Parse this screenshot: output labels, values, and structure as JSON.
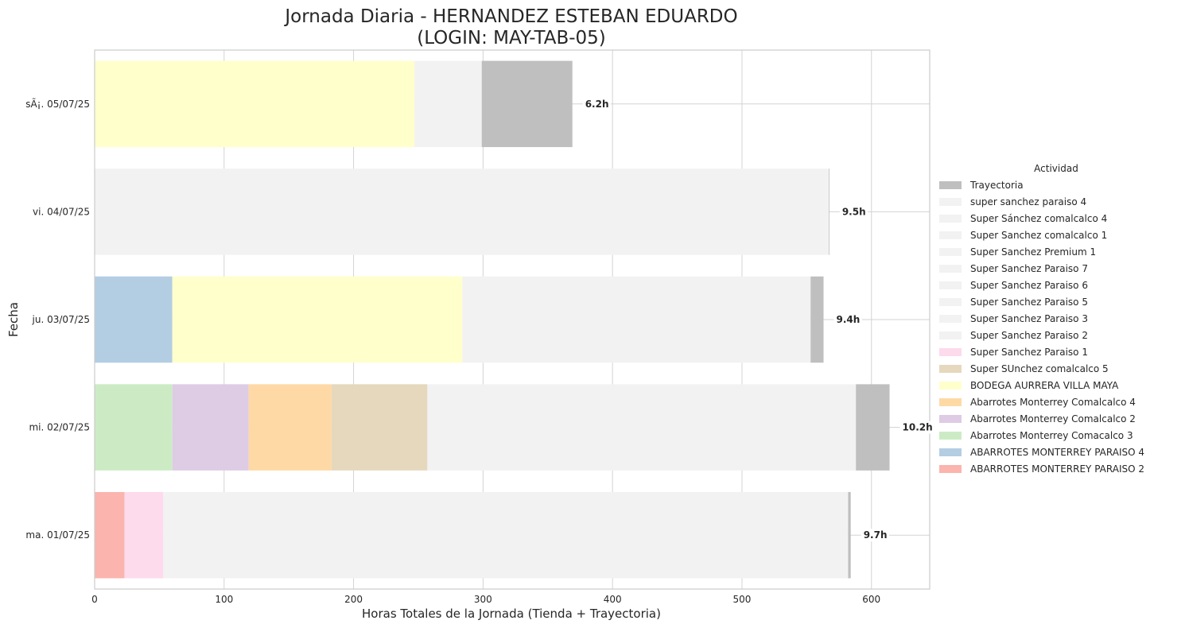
{
  "chart_data": {
    "type": "bar",
    "orientation": "horizontal",
    "stacked": true,
    "title_line1": "Jornada Diaria - HERNANDEZ ESTEBAN EDUARDO",
    "title_line2": "(LOGIN: MAY-TAB-05)",
    "xlabel": "Horas Totales de la Jornada (Tienda + Trayectoria)",
    "ylabel": "Fecha",
    "xlim": [
      0,
      645
    ],
    "xticks": [
      0,
      100,
      200,
      300,
      400,
      500,
      600
    ],
    "grid": true,
    "legend_title": "Actividad",
    "legend_placement": "right",
    "categories": [
      "ma. 01/07/25",
      "mi. 02/07/25",
      "ju. 03/07/25",
      "vi. 04/07/25",
      "sÃ¡. 05/07/25"
    ],
    "totals_labels": [
      "9.7h",
      "10.2h",
      "9.4h",
      "9.5h",
      "6.2h"
    ],
    "series": [
      {
        "name": "Trayectoria",
        "color": "#bfbfbf"
      },
      {
        "name": "super sanchez paraiso 4",
        "color": "#f2f2f2"
      },
      {
        "name": "Super Sánchez comalcalco 4",
        "color": "#f2f2f2"
      },
      {
        "name": "Super Sanchez comalcalco 1",
        "color": "#f2f2f2"
      },
      {
        "name": "Super Sanchez Premium 1",
        "color": "#f2f2f2"
      },
      {
        "name": "Super Sanchez Paraiso 7",
        "color": "#f2f2f2"
      },
      {
        "name": "Super Sanchez Paraiso 6",
        "color": "#f2f2f2"
      },
      {
        "name": "Super Sanchez Paraiso 5",
        "color": "#f2f2f2"
      },
      {
        "name": "Super Sanchez Paraiso 3",
        "color": "#f2f2f2"
      },
      {
        "name": "Super Sanchez Paraiso 2",
        "color": "#f2f2f2"
      },
      {
        "name": "Super Sanchez Paraiso 1",
        "color": "#fddaec"
      },
      {
        "name": "Super SUnchez comalcalco 5",
        "color": "#e5d8bd"
      },
      {
        "name": "BODEGA AURRERA VILLA MAYA",
        "color": "#ffffcc"
      },
      {
        "name": "Abarrotes Monterrey Comalcalco 4",
        "color": "#fed9a6"
      },
      {
        "name": "Abarrotes Monterrey Comalcalco 2",
        "color": "#decbe4"
      },
      {
        "name": "Abarrotes Monterrey Comacalco 3",
        "color": "#ccebc5"
      },
      {
        "name": "ABARROTES MONTERREY PARAISO 4",
        "color": "#b3cde3"
      },
      {
        "name": "ABARROTES MONTERREY PARAISO 2",
        "color": "#fbb4ae"
      }
    ],
    "bars": [
      {
        "category": "ma. 01/07/25",
        "segments": [
          {
            "series": "ABARROTES MONTERREY PARAISO 2",
            "value": 23
          },
          {
            "series": "Super Sanchez Paraiso 1",
            "value": 30
          },
          {
            "series": "Super Sanchez Paraiso 2",
            "value": 529
          },
          {
            "series": "Trayectoria",
            "value": 2
          }
        ]
      },
      {
        "category": "mi. 02/07/25",
        "segments": [
          {
            "series": "Abarrotes Monterrey Comacalco 3",
            "value": 60
          },
          {
            "series": "Abarrotes Monterrey Comalcalco 2",
            "value": 59
          },
          {
            "series": "Abarrotes Monterrey Comalcalco 4",
            "value": 64
          },
          {
            "series": "Super SUnchez comalcalco 5",
            "value": 74
          },
          {
            "series": "Super Sanchez comalcalco 1",
            "value": 331
          },
          {
            "series": "Trayectoria",
            "value": 26
          }
        ]
      },
      {
        "category": "ju. 03/07/25",
        "segments": [
          {
            "series": "ABARROTES MONTERREY PARAISO 4",
            "value": 60
          },
          {
            "series": "BODEGA AURRERA VILLA MAYA",
            "value": 224
          },
          {
            "series": "Super Sanchez Paraiso 3",
            "value": 269
          },
          {
            "series": "Trayectoria",
            "value": 10
          }
        ]
      },
      {
        "category": "vi. 04/07/25",
        "segments": [
          {
            "series": "Super Sanchez Paraiso 5",
            "value": 567
          },
          {
            "series": "Trayectoria",
            "value": 0.5
          }
        ]
      },
      {
        "category": "sÃ¡. 05/07/25",
        "segments": [
          {
            "series": "BODEGA AURRERA VILLA MAYA",
            "value": 247
          },
          {
            "series": "Super Sanchez Paraiso 6",
            "value": 52
          },
          {
            "series": "Trayectoria",
            "value": 70
          }
        ]
      }
    ]
  }
}
